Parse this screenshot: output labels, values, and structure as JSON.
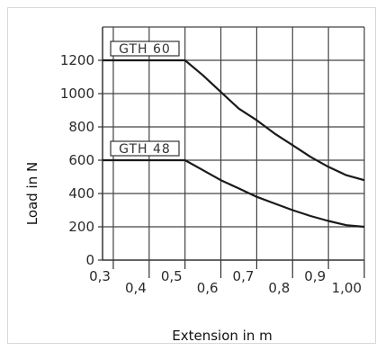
{
  "chart_data": {
    "type": "line",
    "xlabel": "Extension in m",
    "ylabel": "Load in N",
    "xlim": [
      0.27,
      1.0
    ],
    "ylim": [
      0,
      1400
    ],
    "grid": true,
    "x_ticks": [
      {
        "value": 0.3,
        "label": "0,3",
        "pos": "high"
      },
      {
        "value": 0.4,
        "label": "0,4",
        "pos": "low"
      },
      {
        "value": 0.5,
        "label": "0,5",
        "pos": "high"
      },
      {
        "value": 0.6,
        "label": "0,6",
        "pos": "low"
      },
      {
        "value": 0.7,
        "label": "0,7",
        "pos": "high"
      },
      {
        "value": 0.8,
        "label": "0,8",
        "pos": "low"
      },
      {
        "value": 0.9,
        "label": "0,9",
        "pos": "high"
      },
      {
        "value": 1.0,
        "label": "1,00",
        "pos": "low"
      }
    ],
    "y_ticks": [
      {
        "value": 0,
        "label": "0"
      },
      {
        "value": 200,
        "label": "200"
      },
      {
        "value": 400,
        "label": "400"
      },
      {
        "value": 600,
        "label": "600"
      },
      {
        "value": 800,
        "label": "800"
      },
      {
        "value": 1000,
        "label": "1000"
      },
      {
        "value": 1200,
        "label": "1200"
      }
    ],
    "series": [
      {
        "name": "GTH  60",
        "x": [
          0.27,
          0.5,
          0.55,
          0.6,
          0.65,
          0.7,
          0.75,
          0.8,
          0.85,
          0.9,
          0.95,
          1.0
        ],
        "y": [
          1200,
          1200,
          1110,
          1010,
          910,
          840,
          760,
          690,
          620,
          560,
          510,
          480
        ]
      },
      {
        "name": "GTH  48",
        "x": [
          0.27,
          0.5,
          0.55,
          0.6,
          0.65,
          0.7,
          0.75,
          0.8,
          0.85,
          0.9,
          0.95,
          1.0
        ],
        "y": [
          600,
          600,
          540,
          480,
          430,
          380,
          340,
          300,
          265,
          235,
          210,
          200
        ]
      }
    ]
  }
}
